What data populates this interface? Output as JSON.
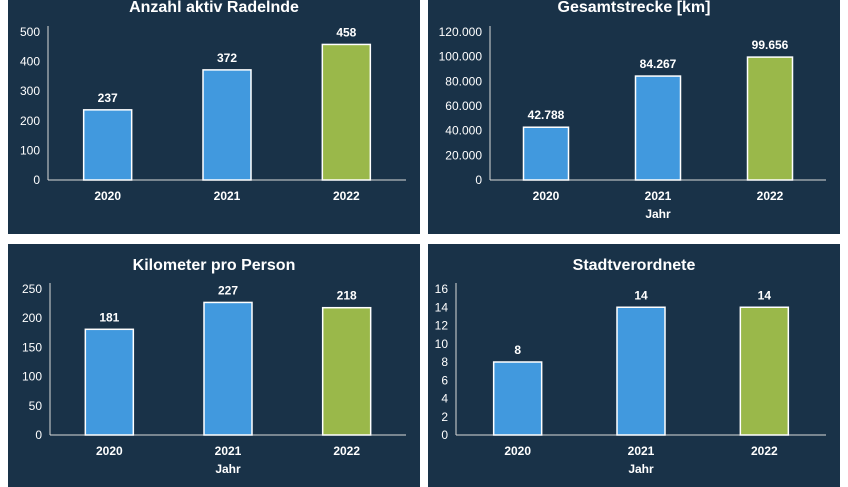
{
  "chart_data": [
    {
      "type": "bar",
      "title": "Anzahl aktiv Radelnde",
      "xlabel": "",
      "ylabel": "",
      "categories": [
        "2020",
        "2021",
        "2022"
      ],
      "values": [
        237,
        372,
        458
      ],
      "data_labels": [
        "237",
        "372",
        "458"
      ],
      "ylim": [
        0,
        500
      ],
      "yticks": [
        "0",
        "100",
        "200",
        "300",
        "400",
        "500"
      ],
      "colors": [
        "#4199de",
        "#4199de",
        "#9ab84a"
      ]
    },
    {
      "type": "bar",
      "title": "Gesamtstrecke [km]",
      "xlabel": "Jahr",
      "ylabel": "",
      "categories": [
        "2020",
        "2021",
        "2022"
      ],
      "values": [
        42788,
        84267,
        99656
      ],
      "data_labels": [
        "42.788",
        "84.267",
        "99.656"
      ],
      "ylim": [
        0,
        120000
      ],
      "yticks": [
        "0",
        "20.000",
        "40.000",
        "60.000",
        "80.000",
        "100.000",
        "120.000"
      ],
      "colors": [
        "#4199de",
        "#4199de",
        "#9ab84a"
      ]
    },
    {
      "type": "bar",
      "title": "Kilometer pro Person",
      "xlabel": "Jahr",
      "ylabel": "",
      "categories": [
        "2020",
        "2021",
        "2022"
      ],
      "values": [
        181,
        227,
        218
      ],
      "data_labels": [
        "181",
        "227",
        "218"
      ],
      "ylim": [
        0,
        250
      ],
      "yticks": [
        "0",
        "50",
        "100",
        "150",
        "200",
        "250"
      ],
      "colors": [
        "#4199de",
        "#4199de",
        "#9ab84a"
      ]
    },
    {
      "type": "bar",
      "title": "Stadtverordnete",
      "xlabel": "Jahr",
      "ylabel": "",
      "categories": [
        "2020",
        "2021",
        "2022"
      ],
      "values": [
        8,
        14,
        14
      ],
      "data_labels": [
        "8",
        "14",
        "14"
      ],
      "ylim": [
        0,
        16
      ],
      "yticks": [
        "0",
        "2",
        "4",
        "6",
        "8",
        "10",
        "12",
        "14",
        "16"
      ],
      "colors": [
        "#4199de",
        "#4199de",
        "#9ab84a"
      ]
    }
  ]
}
